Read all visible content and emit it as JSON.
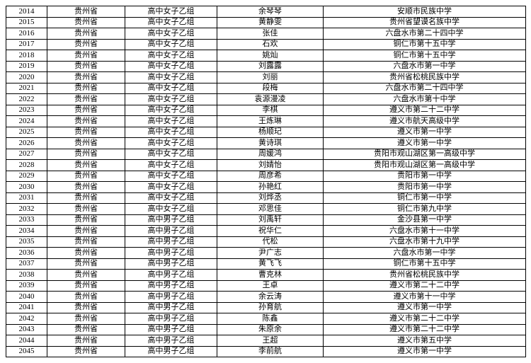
{
  "table": {
    "rows": [
      [
        "2014",
        "贵州省",
        "高中女子乙组",
        "余琴琴",
        "安顺市民族中学"
      ],
      [
        "2015",
        "贵州省",
        "高中女子乙组",
        "黄静雯",
        "贵州省望谟名族中学"
      ],
      [
        "2016",
        "贵州省",
        "高中女子乙组",
        "张佳",
        "六盘水市第二十四中学"
      ],
      [
        "2017",
        "贵州省",
        "高中女子乙组",
        "石欢",
        "铜仁市第十五中学"
      ],
      [
        "2018",
        "贵州省",
        "高中女子乙组",
        "姚灿",
        "铜仁市第十五中学"
      ],
      [
        "2019",
        "贵州省",
        "高中女子乙组",
        "刘露露",
        "六盘水市第一中学"
      ],
      [
        "2020",
        "贵州省",
        "高中女子乙组",
        "刘丽",
        "贵州省松桃民族中学"
      ],
      [
        "2021",
        "贵州省",
        "高中女子乙组",
        "段梅",
        "六盘水市第二十四中学"
      ],
      [
        "2022",
        "贵州省",
        "高中女子乙组",
        "袁源漫凌",
        "六盘水市第十中学"
      ],
      [
        "2023",
        "贵州省",
        "高中女子乙组",
        "李棋",
        "遵义市第二十二中学"
      ],
      [
        "2024",
        "贵州省",
        "高中女子乙组",
        "王炼琳",
        "遵义市航天高级中学"
      ],
      [
        "2025",
        "贵州省",
        "高中女子乙组",
        "杨顺玘",
        "遵义市第一中学"
      ],
      [
        "2026",
        "贵州省",
        "高中女子乙组",
        "黄诗琪",
        "遵义市第一中学"
      ],
      [
        "2027",
        "贵州省",
        "高中女子乙组",
        "周媛鸿",
        "贵阳市观山湖区第一高级中学"
      ],
      [
        "2028",
        "贵州省",
        "高中女子乙组",
        "刘婧怡",
        "贵阳市观山湖区第一高级中学"
      ],
      [
        "2029",
        "贵州省",
        "高中女子乙组",
        "周彦希",
        "贵阳市第一中学"
      ],
      [
        "2030",
        "贵州省",
        "高中女子乙组",
        "孙艳红",
        "贵阳市第一中学"
      ],
      [
        "2031",
        "贵州省",
        "高中女子乙组",
        "刘烨丞",
        "铜仁市第一中学"
      ],
      [
        "2032",
        "贵州省",
        "高中女子乙组",
        "邓思佳",
        "铜仁市第九中学"
      ],
      [
        "2033",
        "贵州省",
        "高中男子乙组",
        "刘禹轩",
        "金沙县第一中学"
      ],
      [
        "2034",
        "贵州省",
        "高中男子乙组",
        "祝华仁",
        "六盘水市第十一中学"
      ],
      [
        "2035",
        "贵州省",
        "高中男子乙组",
        "代松",
        "六盘水市第十九中学"
      ],
      [
        "2036",
        "贵州省",
        "高中男子乙组",
        "尹广志",
        "六盘水市第一中学"
      ],
      [
        "2037",
        "贵州省",
        "高中男子乙组",
        "黄飞飞",
        "铜仁市第十五中学"
      ],
      [
        "2038",
        "贵州省",
        "高中男子乙组",
        "曹克林",
        "贵州省松桃民族中学"
      ],
      [
        "2039",
        "贵州省",
        "高中男子乙组",
        "王卓",
        "遵义市第二十二中学"
      ],
      [
        "2040",
        "贵州省",
        "高中男子乙组",
        "余云涛",
        "遵义市第十一中学"
      ],
      [
        "2041",
        "贵州省",
        "高中男子乙组",
        "孙育航",
        "遵义市第一中学"
      ],
      [
        "2042",
        "贵州省",
        "高中男子乙组",
        "陈鑫",
        "遵义市第二十二中学"
      ],
      [
        "2043",
        "贵州省",
        "高中男子乙组",
        "朱原余",
        "遵义市第二十二中学"
      ],
      [
        "2044",
        "贵州省",
        "高中男子乙组",
        "王超",
        "遵义市第五中学"
      ],
      [
        "2045",
        "贵州省",
        "高中男子乙组",
        "李前航",
        "遵义市第一中学"
      ]
    ]
  }
}
